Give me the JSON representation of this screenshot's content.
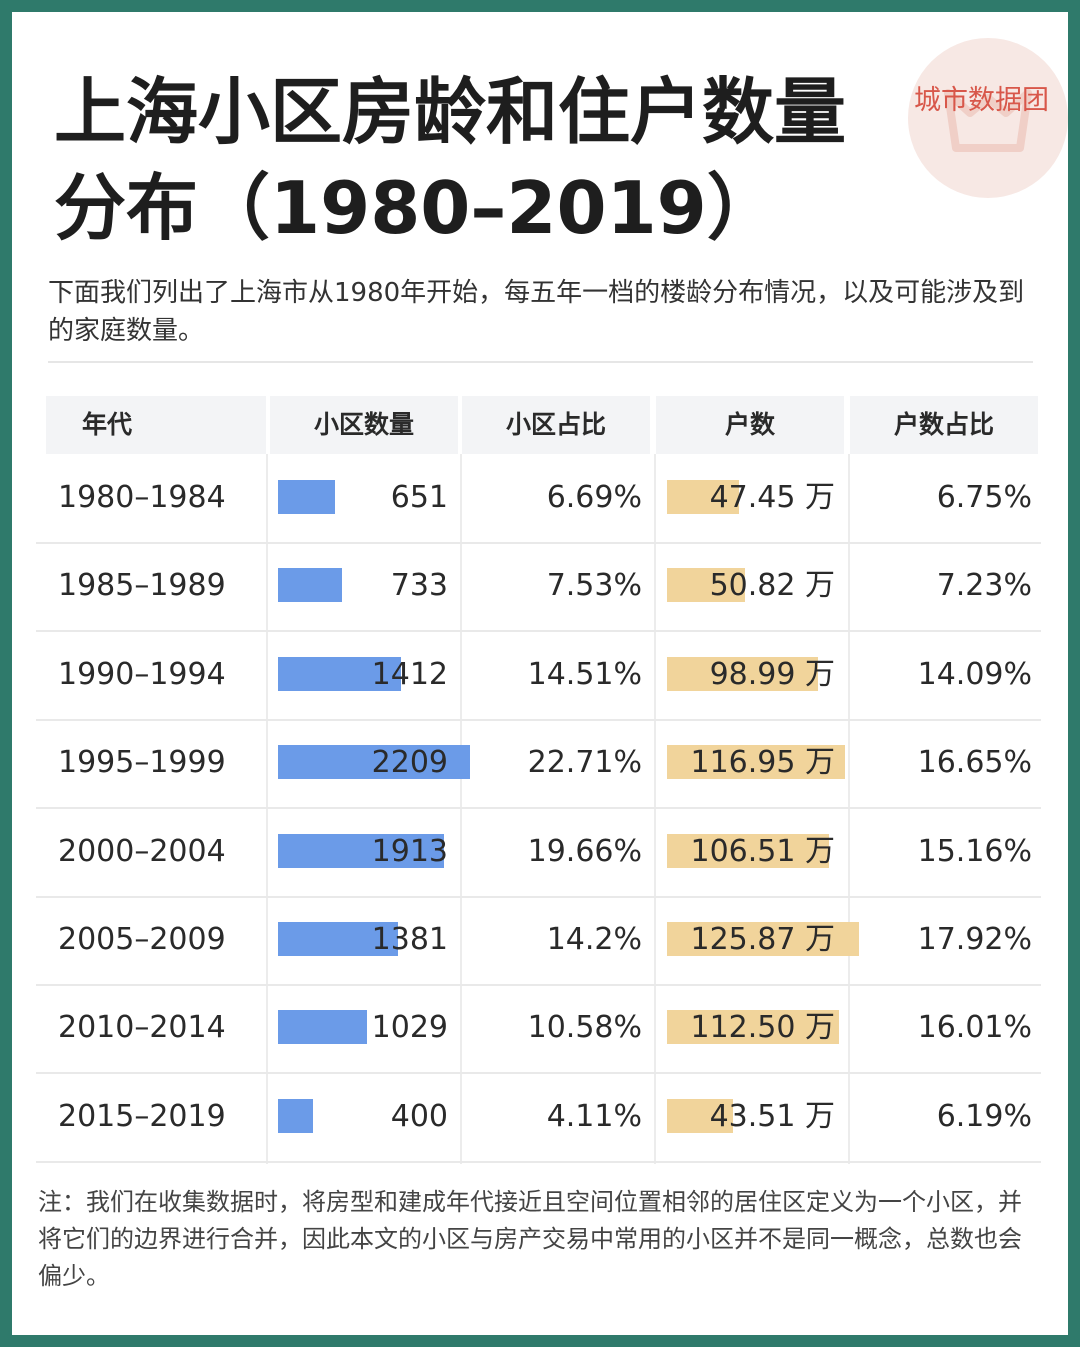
{
  "watermark": {
    "text": "城市数据团"
  },
  "title": "上海小区房龄和住户数量分布（1980–2019）",
  "intro": "下面我们列出了上海市从1980年开始，每五年一档的楼龄分布情况，以及可能涉及到的家庭数量。",
  "footnote": "注：我们在收集数据时，将房型和建成年代接近且空间位置相邻的居住区定义为一个小区，并将它们的边界进行合并，因此本文的小区与房产交易中常用的小区并不是同一概念，总数也会偏少。",
  "colors": {
    "community_bar": "#6b9be8",
    "household_bar": "#f1d49b",
    "frame": "#2f7a6b"
  },
  "chart_data": {
    "type": "table",
    "columns": [
      "年代",
      "小区数量",
      "小区占比",
      "户数",
      "户数占比"
    ],
    "rows": [
      {
        "period": "1980–1984",
        "communities": 651,
        "community_share": "6.69%",
        "households": "47.45 万",
        "households_wan": 47.45,
        "household_share": "6.75%"
      },
      {
        "period": "1985–1989",
        "communities": 733,
        "community_share": "7.53%",
        "households": "50.82 万",
        "households_wan": 50.82,
        "household_share": "7.23%"
      },
      {
        "period": "1990–1994",
        "communities": 1412,
        "community_share": "14.51%",
        "households": "98.99 万",
        "households_wan": 98.99,
        "household_share": "14.09%"
      },
      {
        "period": "1995–1999",
        "communities": 2209,
        "community_share": "22.71%",
        "households": "116.95 万",
        "households_wan": 116.95,
        "household_share": "16.65%"
      },
      {
        "period": "2000–2004",
        "communities": 1913,
        "community_share": "19.66%",
        "households": "106.51 万",
        "households_wan": 106.51,
        "household_share": "15.16%"
      },
      {
        "period": "2005–2009",
        "communities": 1381,
        "community_share": "14.2%",
        "households": "125.87 万",
        "households_wan": 125.87,
        "household_share": "17.92%"
      },
      {
        "period": "2010–2014",
        "communities": 1029,
        "community_share": "10.58%",
        "households": "112.50 万",
        "households_wan": 112.5,
        "household_share": "16.01%"
      },
      {
        "period": "2015–2019",
        "communities": 400,
        "community_share": "4.11%",
        "households": "43.51 万",
        "households_wan": 43.51,
        "household_share": "6.19%"
      }
    ]
  }
}
